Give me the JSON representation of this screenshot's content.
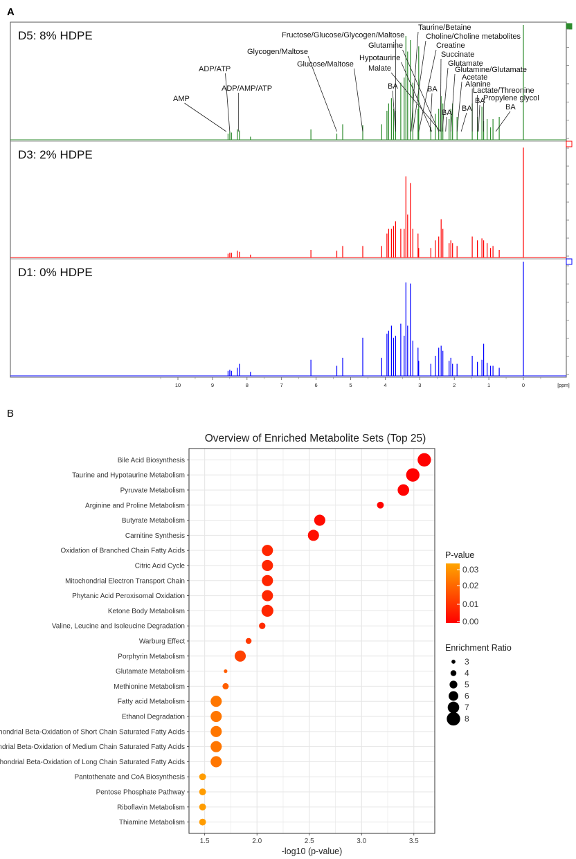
{
  "panel_labels": {
    "a": "A",
    "b": "B"
  },
  "nmr": {
    "axis_unit": "[ppm]",
    "ticks": [
      10,
      9,
      8,
      7,
      6,
      5,
      4,
      3,
      2,
      1,
      0
    ],
    "spectra": [
      {
        "label": "D5: 8% HDPE",
        "color": "#2e8b2e"
      },
      {
        "label": "D3: 2% HDPE",
        "color": "#ff0000"
      },
      {
        "label": "D1: 0% HDPE",
        "color": "#0000ff"
      }
    ],
    "peaks": [
      {
        "ppm": 8.55,
        "d5": 0.06,
        "d3": 0.04,
        "d1": 0.05
      },
      {
        "ppm": 8.5,
        "d5": 0.08,
        "d3": 0.05,
        "d1": 0.06
      },
      {
        "ppm": 8.45,
        "d5": 0.07,
        "d3": 0.05,
        "d1": 0.05
      },
      {
        "ppm": 8.28,
        "d5": 0.1,
        "d3": 0.07,
        "d1": 0.08
      },
      {
        "ppm": 8.22,
        "d5": 0.09,
        "d3": 0.06,
        "d1": 0.12
      },
      {
        "ppm": 7.9,
        "d5": 0.03,
        "d3": 0.03,
        "d1": 0.04
      },
      {
        "ppm": 6.15,
        "d5": 0.1,
        "d3": 0.08,
        "d1": 0.16
      },
      {
        "ppm": 5.4,
        "d5": 0.06,
        "d3": 0.07,
        "d1": 0.1
      },
      {
        "ppm": 5.23,
        "d5": 0.15,
        "d3": 0.12,
        "d1": 0.18
      },
      {
        "ppm": 4.65,
        "d5": 0.14,
        "d3": 0.12,
        "d1": 0.38
      },
      {
        "ppm": 4.1,
        "d5": 0.15,
        "d3": 0.12,
        "d1": 0.18
      },
      {
        "ppm": 3.95,
        "d5": 0.28,
        "d3": 0.25,
        "d1": 0.42
      },
      {
        "ppm": 3.9,
        "d5": 0.35,
        "d3": 0.3,
        "d1": 0.45
      },
      {
        "ppm": 3.82,
        "d5": 0.4,
        "d3": 0.3,
        "d1": 0.5
      },
      {
        "ppm": 3.76,
        "d5": 0.3,
        "d3": 0.33,
        "d1": 0.38
      },
      {
        "ppm": 3.7,
        "d5": 0.28,
        "d3": 0.38,
        "d1": 0.4
      },
      {
        "ppm": 3.55,
        "d5": 0.55,
        "d3": 0.3,
        "d1": 0.52
      },
      {
        "ppm": 3.45,
        "d5": 0.6,
        "d3": 0.3,
        "d1": 0.4
      },
      {
        "ppm": 3.4,
        "d5": 1.0,
        "d3": 0.85,
        "d1": 0.93
      },
      {
        "ppm": 3.35,
        "d5": 0.85,
        "d3": 0.45,
        "d1": 0.5
      },
      {
        "ppm": 3.27,
        "d5": 0.96,
        "d3": 0.78,
        "d1": 0.92
      },
      {
        "ppm": 3.2,
        "d5": 0.55,
        "d3": 0.3,
        "d1": 0.35
      },
      {
        "ppm": 3.05,
        "d5": 0.3,
        "d3": 0.25,
        "d1": 0.28
      },
      {
        "ppm": 3.03,
        "d5": 0.9,
        "d3": 0.1,
        "d1": 0.15
      },
      {
        "ppm": 2.68,
        "d5": 0.12,
        "d3": 0.1,
        "d1": 0.12
      },
      {
        "ppm": 2.55,
        "d5": 0.25,
        "d3": 0.18,
        "d1": 0.2
      },
      {
        "ppm": 2.45,
        "d5": 0.3,
        "d3": 0.22,
        "d1": 0.28
      },
      {
        "ppm": 2.38,
        "d5": 0.42,
        "d3": 0.4,
        "d1": 0.3
      },
      {
        "ppm": 2.33,
        "d5": 0.35,
        "d3": 0.3,
        "d1": 0.25
      },
      {
        "ppm": 2.15,
        "d5": 0.2,
        "d3": 0.15,
        "d1": 0.15
      },
      {
        "ppm": 2.1,
        "d5": 0.3,
        "d3": 0.18,
        "d1": 0.18
      },
      {
        "ppm": 2.05,
        "d5": 0.35,
        "d3": 0.15,
        "d1": 0.12
      },
      {
        "ppm": 1.92,
        "d5": 0.22,
        "d3": 0.12,
        "d1": 0.12
      },
      {
        "ppm": 1.48,
        "d5": 0.35,
        "d3": 0.22,
        "d1": 0.2
      },
      {
        "ppm": 1.33,
        "d5": 0.22,
        "d3": 0.18,
        "d1": 0.14
      },
      {
        "ppm": 1.2,
        "d5": 0.32,
        "d3": 0.2,
        "d1": 0.16
      },
      {
        "ppm": 1.15,
        "d5": 0.18,
        "d3": 0.18,
        "d1": 0.32
      },
      {
        "ppm": 1.05,
        "d5": 0.2,
        "d3": 0.15,
        "d1": 0.13
      },
      {
        "ppm": 0.95,
        "d5": 0.12,
        "d3": 0.1,
        "d1": 0.1
      },
      {
        "ppm": 0.88,
        "d5": 0.2,
        "d3": 0.12,
        "d1": 0.1
      },
      {
        "ppm": 0.7,
        "d5": 0.22,
        "d3": 0.08,
        "d1": 0.08
      },
      {
        "ppm": 0.0,
        "d5": 1.15,
        "d3": 1.15,
        "d1": 1.15
      }
    ],
    "annotations": [
      {
        "text": "AMP",
        "ppm": 8.6
      },
      {
        "text": "ADP/ATP",
        "ppm": 8.5
      },
      {
        "text": "ADP/AMP/ATP",
        "ppm": 8.25
      },
      {
        "text": "Glycogen/Maltose",
        "ppm": 5.4
      },
      {
        "text": "Glucose/Maltose",
        "ppm": 4.65
      },
      {
        "text": "Fructose/Glucose/Glycogen/Maltose",
        "ppm": 3.7
      },
      {
        "text": "Taurine/Betaine",
        "ppm": 3.25
      },
      {
        "text": "Choline/Choline metabolites",
        "ppm": 3.2
      },
      {
        "text": "Glutamine",
        "ppm": 2.45
      },
      {
        "text": "Hypotaurine",
        "ppm": 2.65
      },
      {
        "text": "Malate",
        "ppm": 2.4
      },
      {
        "text": "Creatine",
        "ppm": 3.03
      },
      {
        "text": "Succinate",
        "ppm": 2.4
      },
      {
        "text": "Glutamate",
        "ppm": 2.35
      },
      {
        "text": "Glutamine/Glutamate",
        "ppm": 2.1
      },
      {
        "text": "Acetate",
        "ppm": 1.92
      },
      {
        "text": "Alanine",
        "ppm": 1.48
      },
      {
        "text": "Lactate/Threonine",
        "ppm": 1.33
      },
      {
        "text": "Propylene glycol",
        "ppm": 1.15
      },
      {
        "text": "BA",
        "ppm": 3.7
      },
      {
        "text": "BA",
        "ppm": 2.7
      },
      {
        "text": "BA",
        "ppm": 2.25
      },
      {
        "text": "BA",
        "ppm": 1.8
      },
      {
        "text": "BA",
        "ppm": 1.3
      },
      {
        "text": "BA",
        "ppm": 0.8
      }
    ]
  },
  "chart_data": {
    "type": "scatter",
    "title": "Overview of Enriched Metabolite Sets (Top 25)",
    "xlabel": "-log10 (p-value)",
    "ylabel": "",
    "xlim": [
      1.35,
      3.7
    ],
    "xticks": [
      1.5,
      2.0,
      2.5,
      3.0,
      3.5
    ],
    "xtick_labels": [
      "1.5",
      "2.0",
      "2.5",
      "3.0",
      "3.5"
    ],
    "grid": true,
    "legend_position": "right",
    "color_legend": {
      "title": "P-value",
      "ticks": [
        "0.03",
        "0.02",
        "0.01",
        "0.00"
      ],
      "low_color": "#ff0000",
      "high_color": "#ffa500"
    },
    "size_legend": {
      "title": "Enrichment Ratio",
      "values": [
        3,
        4,
        5,
        6,
        7,
        8
      ]
    },
    "points": [
      {
        "name": "Bile Acid Biosynthesis",
        "x": 3.6,
        "p": 0.0003,
        "ratio": 8.0
      },
      {
        "name": "Taurine and Hypotaurine Metabolism",
        "x": 3.49,
        "p": 0.0003,
        "ratio": 8.0
      },
      {
        "name": "Pyruvate Metabolism",
        "x": 3.4,
        "p": 0.0004,
        "ratio": 7.0
      },
      {
        "name": "Arginine and Proline Metabolism",
        "x": 3.18,
        "p": 0.0007,
        "ratio": 4.5
      },
      {
        "name": "Butyrate Metabolism",
        "x": 2.6,
        "p": 0.0025,
        "ratio": 6.8
      },
      {
        "name": "Carnitine Synthesis",
        "x": 2.54,
        "p": 0.0029,
        "ratio": 6.8
      },
      {
        "name": "Oxidation of Branched Chain Fatty Acids",
        "x": 2.1,
        "p": 0.008,
        "ratio": 6.8
      },
      {
        "name": "Citric Acid Cycle",
        "x": 2.1,
        "p": 0.008,
        "ratio": 6.8
      },
      {
        "name": "Mitochondrial Electron Transport Chain",
        "x": 2.1,
        "p": 0.008,
        "ratio": 6.8
      },
      {
        "name": "Phytanic Acid Peroxisomal Oxidation",
        "x": 2.1,
        "p": 0.008,
        "ratio": 6.8
      },
      {
        "name": "Ketone Body Metabolism",
        "x": 2.1,
        "p": 0.008,
        "ratio": 7.2
      },
      {
        "name": "Valine, Leucine and Isoleucine Degradation",
        "x": 2.05,
        "p": 0.009,
        "ratio": 4.3
      },
      {
        "name": "Warburg Effect",
        "x": 1.92,
        "p": 0.012,
        "ratio": 4.0
      },
      {
        "name": "Porphyrin Metabolism",
        "x": 1.84,
        "p": 0.014,
        "ratio": 6.8
      },
      {
        "name": "Glutamate Metabolism",
        "x": 1.7,
        "p": 0.02,
        "ratio": 2.8
      },
      {
        "name": "Methionine Metabolism",
        "x": 1.7,
        "p": 0.02,
        "ratio": 4.2
      },
      {
        "name": "Fatty acid Metabolism",
        "x": 1.61,
        "p": 0.025,
        "ratio": 6.8
      },
      {
        "name": "Ethanol Degradation",
        "x": 1.61,
        "p": 0.025,
        "ratio": 6.8
      },
      {
        "name": "Mitochondrial Beta-Oxidation of Short Chain Saturated Fatty Acids",
        "x": 1.61,
        "p": 0.025,
        "ratio": 6.8
      },
      {
        "name": "Mitochondrial Beta-Oxidation of Medium Chain Saturated Fatty Acids",
        "x": 1.61,
        "p": 0.025,
        "ratio": 6.8
      },
      {
        "name": "Mitochondrial Beta-Oxidation of Long Chain Saturated Fatty Acids",
        "x": 1.61,
        "p": 0.025,
        "ratio": 6.8
      },
      {
        "name": "Pantothenate and CoA Biosynthesis",
        "x": 1.48,
        "p": 0.033,
        "ratio": 4.5
      },
      {
        "name": "Pentose Phosphate Pathway",
        "x": 1.48,
        "p": 0.033,
        "ratio": 4.5
      },
      {
        "name": "Riboflavin Metabolism",
        "x": 1.48,
        "p": 0.033,
        "ratio": 4.5
      },
      {
        "name": "Thiamine Metabolism",
        "x": 1.48,
        "p": 0.033,
        "ratio": 4.5
      }
    ]
  }
}
